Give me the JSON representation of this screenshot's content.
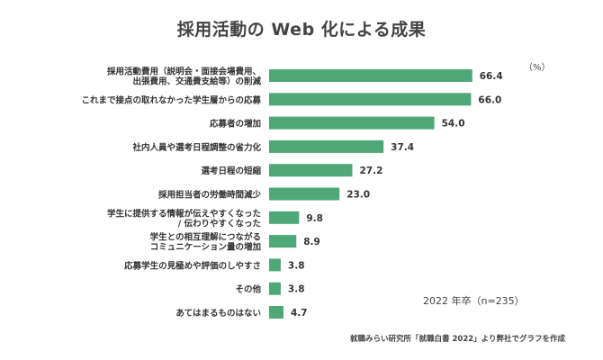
{
  "title": "採用活動の Web 化による成果",
  "unit_label": "（%）",
  "sample_label": "2022 年卒（n=235）",
  "source_label": "就職みらい研究所「就職白書 2022」より弊社でグラフを作成",
  "colors": {
    "bar": "#4fa878",
    "text": "#333333"
  },
  "chart_data": {
    "type": "bar",
    "orientation": "horizontal",
    "title": "採用活動の Web 化による成果",
    "categories": [
      [
        "採用活動費用（説明会・面接会場費用、",
        "出張費用、交通費支給等）の削減"
      ],
      [
        "これまで接点の取れなかった学生層からの応募"
      ],
      [
        "応募者の増加"
      ],
      [
        "社内人員や選考日程調整の省力化"
      ],
      [
        "選考日程の短縮"
      ],
      [
        "採用担当者の労働時間減少"
      ],
      [
        "学生に提供する情報が伝えやすくなった",
        "/ 伝わりやすくなった"
      ],
      [
        "学生との相互理解につながる",
        "コミュニケーション量の増加"
      ],
      [
        "応募学生の見極めや評価のしやすさ"
      ],
      [
        "その他"
      ],
      [
        "あてはまるものはない"
      ]
    ],
    "values": [
      66.4,
      66.0,
      54.0,
      37.4,
      27.2,
      23.0,
      9.8,
      8.9,
      3.8,
      3.8,
      4.7
    ],
    "value_labels": [
      "66.4",
      "66.0",
      "54.0",
      "37.4",
      "27.2",
      "23.0",
      "9.8",
      "8.9",
      "3.8",
      "3.8",
      "4.7"
    ],
    "xlim": [
      0,
      70
    ],
    "grid": false,
    "legend": "none"
  }
}
